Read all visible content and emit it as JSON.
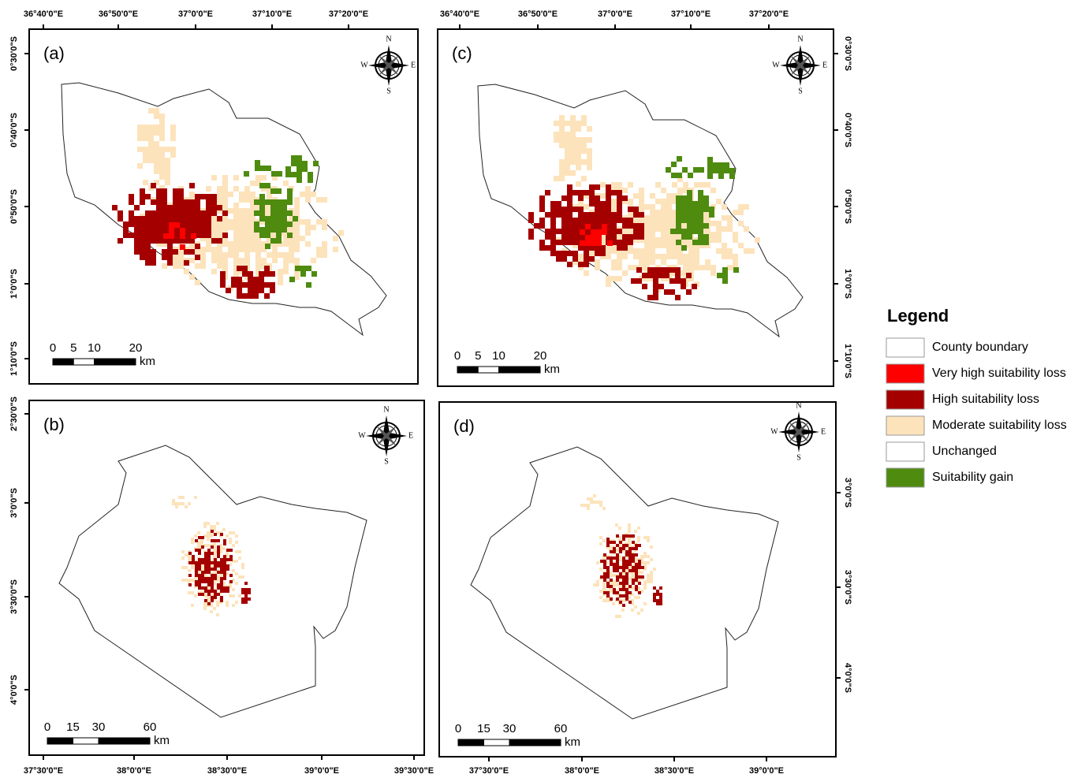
{
  "panels": [
    {
      "label": "(a)",
      "top_labels": [
        "36°40'0\"E",
        "36°50'0\"E",
        "37°0'0\"E",
        "37°10'0\"E",
        "37°20'0\"E"
      ],
      "left_labels": [
        "0°30'0\"S",
        "0°40'0\"S",
        "0°50'0\"S",
        "1°0'0\"S",
        "1°10'0\"S"
      ],
      "scale": [
        "0",
        "5",
        "10",
        "20"
      ],
      "scale_unit": "km",
      "compass": [
        "N",
        "E",
        "S",
        "W"
      ]
    },
    {
      "label": "(b)",
      "left_labels": [
        "2°30'0\"S",
        "3°0'0\"S",
        "3°30'0\"S",
        "4°0'0\"S"
      ],
      "bottom_labels": [
        "37°30'0\"E",
        "38°0'0\"E",
        "38°30'0\"E",
        "39°0'0\"E",
        "39°30'0\"E"
      ],
      "scale": [
        "0",
        "15",
        "30",
        "60"
      ],
      "scale_unit": "km",
      "compass": [
        "N",
        "E",
        "S",
        "W"
      ]
    },
    {
      "label": "(c)",
      "top_labels": [
        "36°40'0\"E",
        "36°50'0\"E",
        "37°0'0\"E",
        "37°10'0\"E",
        "37°20'0\"E"
      ],
      "right_labels": [
        "0°30'0\"S",
        "0°40'0\"S",
        "0°50'0\"S",
        "1°0'0\"S",
        "1°10'0\"S"
      ],
      "scale": [
        "0",
        "5",
        "10",
        "20"
      ],
      "scale_unit": "km",
      "compass": [
        "N",
        "E",
        "S",
        "W"
      ]
    },
    {
      "label": "(d)",
      "right_labels": [
        "3°0'0\"S",
        "3°30'0\"S",
        "4°0'0\"S"
      ],
      "bottom_labels": [
        "37°30'0\"E",
        "38°0'0\"E",
        "38°30'0\"E",
        "39°0'0\"E"
      ],
      "scale": [
        "0",
        "15",
        "30",
        "60"
      ],
      "scale_unit": "km",
      "compass": [
        "N",
        "E",
        "S",
        "W"
      ]
    }
  ],
  "legend": {
    "title": "Legend",
    "items": [
      {
        "label": "County boundary",
        "color": "#ffffff"
      },
      {
        "label": "Very high suitability loss",
        "color": "#ff0000"
      },
      {
        "label": "High suitability loss",
        "color": "#a50000"
      },
      {
        "label": "Moderate suitability loss",
        "color": "#fde3bb"
      },
      {
        "label": "Unchanged",
        "color": "#ffffff"
      },
      {
        "label": "Suitability gain",
        "color": "#4e8b0f"
      }
    ]
  }
}
